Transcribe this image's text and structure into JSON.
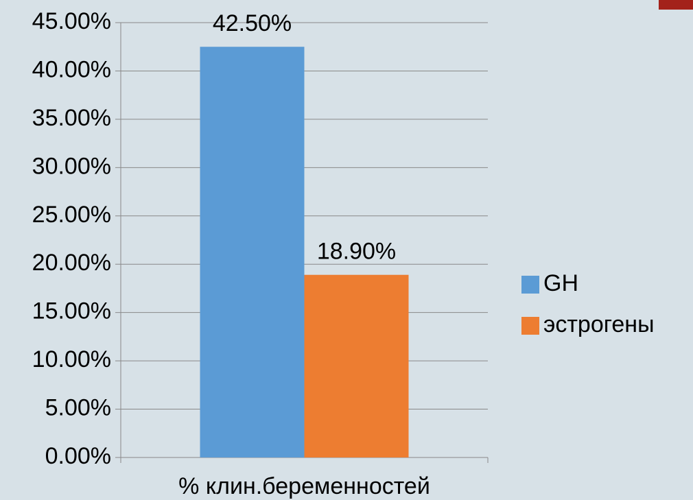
{
  "chart_data": {
    "type": "bar",
    "categories": [
      "% клин.беременностей"
    ],
    "series": [
      {
        "name": "GH",
        "color": "#5b9bd5",
        "values": [
          42.5
        ],
        "value_labels": [
          "42.50%"
        ]
      },
      {
        "name": "эстрогены",
        "color": "#ed7d31",
        "values": [
          18.9
        ],
        "value_labels": [
          "18.90%"
        ]
      }
    ],
    "ylim": [
      0,
      45
    ],
    "yticks": [
      {
        "value": 0,
        "label": "0.00%"
      },
      {
        "value": 5,
        "label": "5.00%"
      },
      {
        "value": 10,
        "label": "10.00%"
      },
      {
        "value": 15,
        "label": "15.00%"
      },
      {
        "value": 20,
        "label": "20.00%"
      },
      {
        "value": 25,
        "label": "25.00%"
      },
      {
        "value": 30,
        "label": "30.00%"
      },
      {
        "value": 35,
        "label": "35.00%"
      },
      {
        "value": 40,
        "label": "40.00%"
      },
      {
        "value": 45,
        "label": "45.00%"
      }
    ],
    "grid": true,
    "legend": "right"
  }
}
